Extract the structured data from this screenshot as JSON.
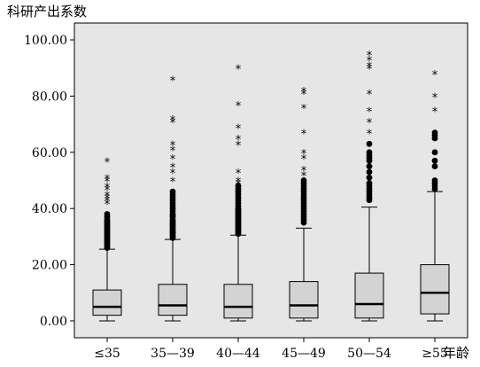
{
  "chart_data": {
    "type": "boxplot",
    "ylabel": "科研产出系数",
    "xlabel": "年龄",
    "ylim": [
      -6,
      106
    ],
    "yticks": [
      0,
      20,
      40,
      60,
      80,
      100
    ],
    "ytick_labels": [
      "0.00",
      "20.00",
      "40.00",
      "60.00",
      "80.00",
      "100.00"
    ],
    "categories": [
      "≤35",
      "35—39",
      "40—44",
      "45—49",
      "50—54",
      "≥55"
    ],
    "boxes": [
      {
        "min": 0,
        "q1": 2,
        "median": 5,
        "q3": 11,
        "max": 25.5,
        "outliers": [
          26,
          26.5,
          27,
          27.5,
          28,
          28.5,
          29,
          29.5,
          30,
          30.5,
          31,
          31.5,
          32,
          32.5,
          33,
          33.5,
          34,
          34.5,
          35,
          35.5,
          36,
          37,
          38
        ],
        "extremes": [
          42,
          43,
          44,
          45,
          47,
          48,
          50,
          51,
          57
        ]
      },
      {
        "min": 0,
        "q1": 2,
        "median": 5.5,
        "q3": 13,
        "max": 29,
        "outliers": [
          29.5,
          30,
          30.5,
          31,
          31.5,
          32,
          32.5,
          33,
          33.5,
          34,
          34.5,
          35,
          35.5,
          36,
          37,
          37.5,
          38,
          39,
          40,
          41,
          42,
          43,
          44,
          45,
          46
        ],
        "extremes": [
          50,
          53,
          55,
          58,
          61,
          63,
          71,
          72,
          86
        ]
      },
      {
        "min": 0,
        "q1": 1,
        "median": 5,
        "q3": 13,
        "max": 30.5,
        "outliers": [
          31,
          31.5,
          32,
          32.5,
          33,
          33.5,
          34,
          34.5,
          35,
          35.5,
          36,
          36.5,
          37,
          37.5,
          38,
          38.5,
          39,
          39.5,
          40,
          41,
          42,
          43,
          44,
          45,
          46,
          47,
          48
        ],
        "extremes": [
          49,
          50,
          53,
          63,
          65,
          69,
          77,
          90
        ]
      },
      {
        "min": 0,
        "q1": 1,
        "median": 5.5,
        "q3": 14,
        "max": 33,
        "outliers": [
          35,
          36,
          37,
          38,
          39,
          40,
          41,
          42,
          43,
          44,
          45,
          46,
          47,
          48,
          49,
          50
        ],
        "extremes": [
          52,
          54,
          58,
          60,
          67,
          76,
          81,
          82
        ]
      },
      {
        "min": 0,
        "q1": 1,
        "median": 6,
        "q3": 17,
        "max": 40.5,
        "outliers": [
          43,
          44,
          45,
          46,
          47,
          48,
          49,
          51,
          53,
          55,
          57,
          58,
          59,
          60,
          63
        ],
        "extremes": [
          67,
          71,
          75,
          81,
          90,
          91,
          93,
          95
        ]
      },
      {
        "min": 0,
        "q1": 2.5,
        "median": 10,
        "q3": 20,
        "max": 46,
        "outliers": [
          47,
          48,
          49,
          50,
          55,
          57,
          60,
          65,
          66,
          67
        ],
        "extremes": [
          75,
          80,
          88
        ]
      }
    ],
    "grid": false,
    "legend": "none"
  },
  "colors": {
    "plot_background": "#e6e6e6",
    "box_fill": "#d3d3d3",
    "line": "#000000"
  }
}
